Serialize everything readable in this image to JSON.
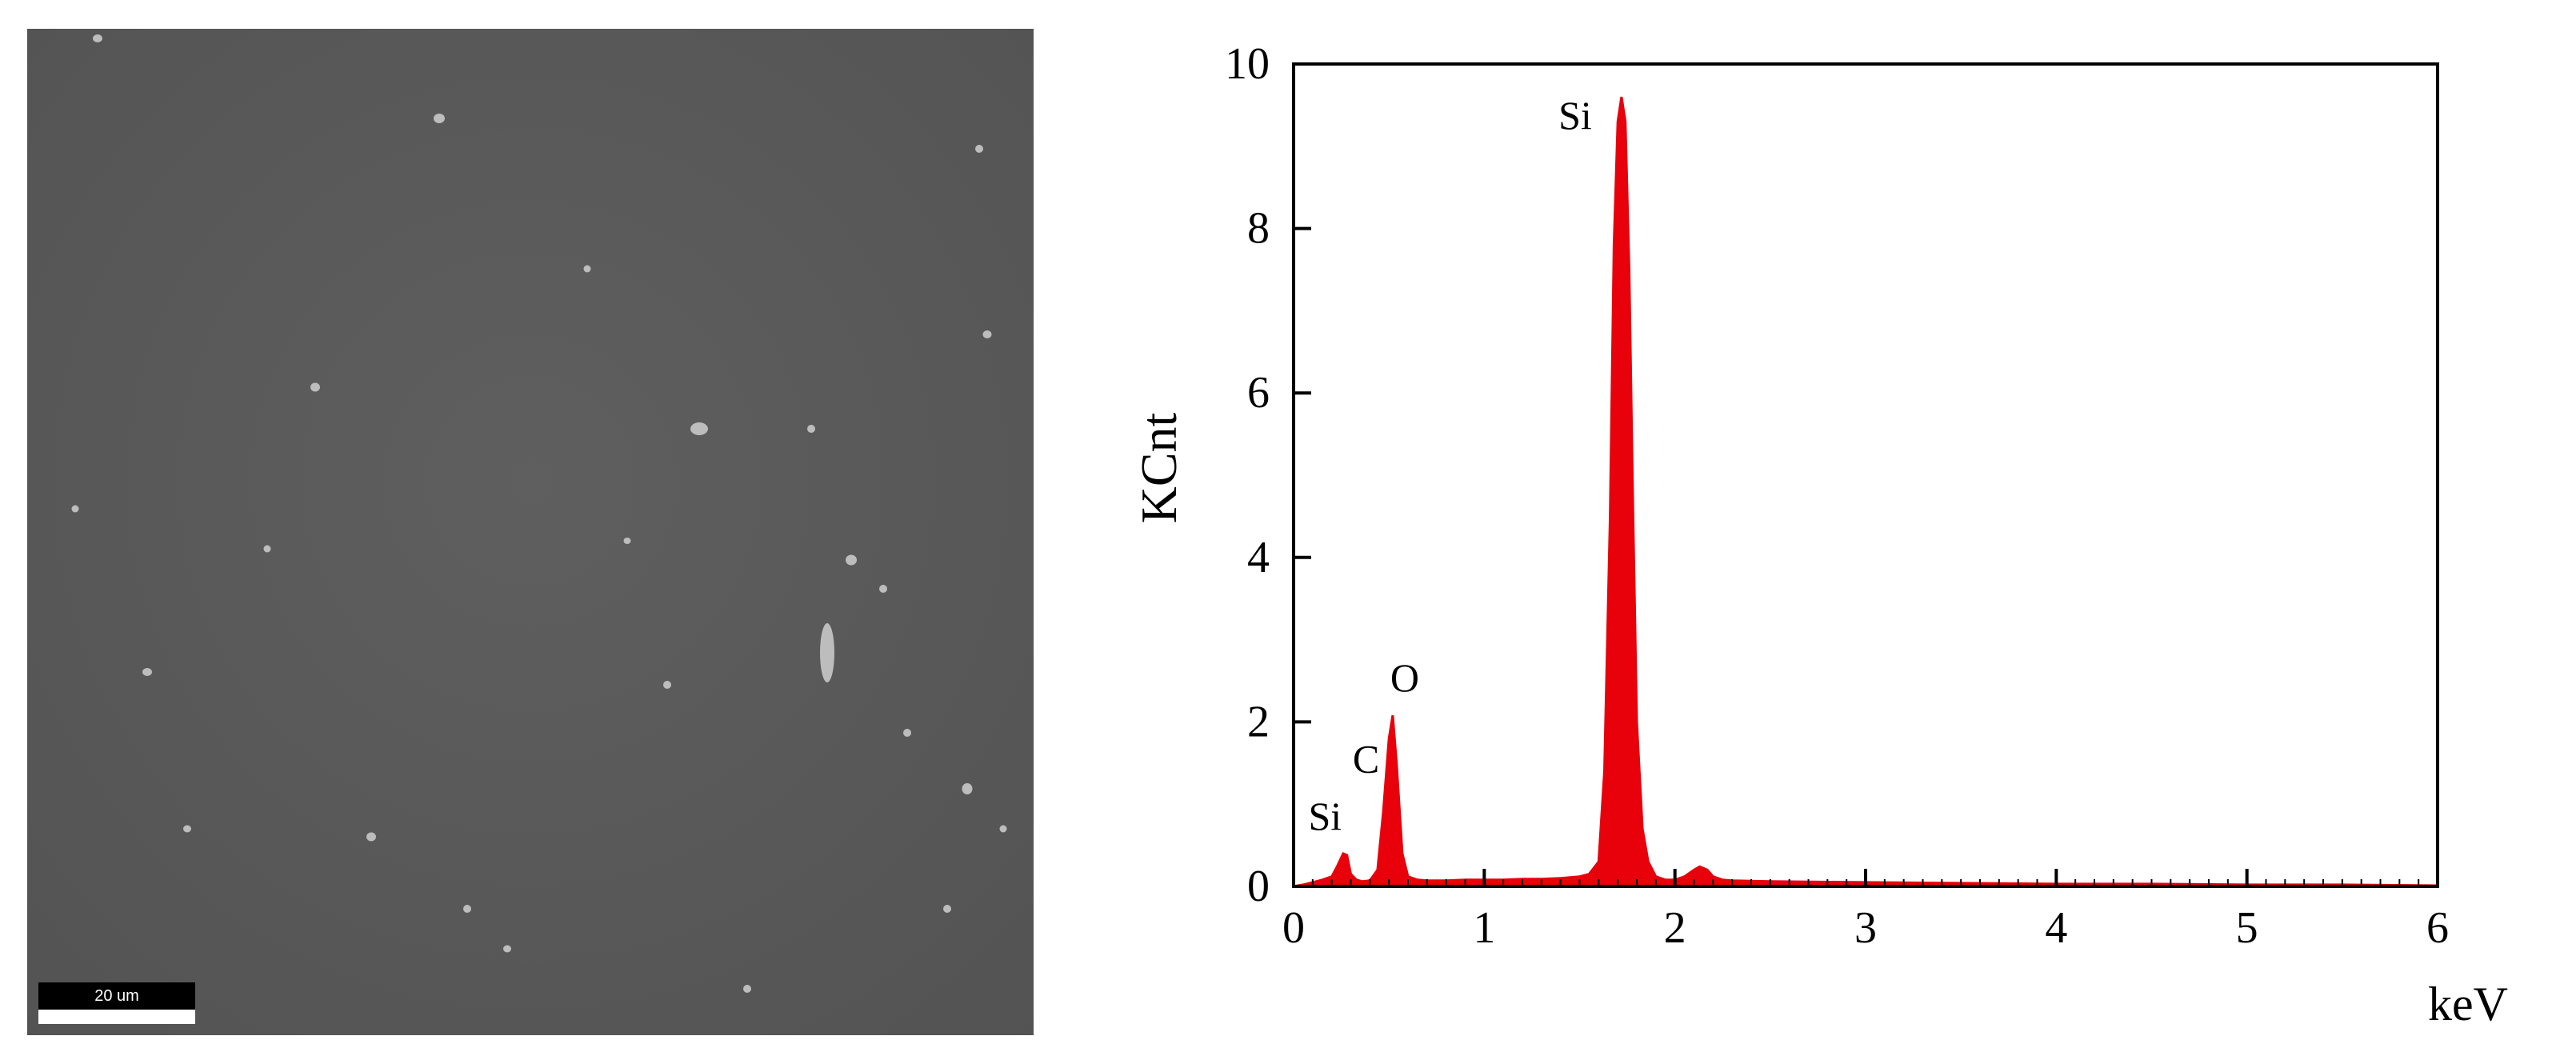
{
  "sem_image": {
    "scale_bar_label": "20 um"
  },
  "chart_data": {
    "type": "line",
    "title": "",
    "xlabel": "keV",
    "ylabel": "KCnt",
    "xlim": [
      0,
      6
    ],
    "ylim": [
      0,
      10
    ],
    "x_ticks": [
      0,
      1,
      2,
      3,
      4,
      5,
      6
    ],
    "y_ticks": [
      0,
      2,
      4,
      6,
      8,
      10
    ],
    "grid": false,
    "legend": "none",
    "series_color": "#e8000b",
    "series": [
      {
        "x": [
          0.0,
          0.05,
          0.1,
          0.15,
          0.2,
          0.23,
          0.26,
          0.28,
          0.3,
          0.33,
          0.36,
          0.4,
          0.44,
          0.47,
          0.5,
          0.52,
          0.54,
          0.57,
          0.6,
          0.65,
          0.7,
          0.8,
          0.9,
          1.0,
          1.1,
          1.2,
          1.3,
          1.4,
          1.5,
          1.55,
          1.6,
          1.63,
          1.66,
          1.68,
          1.7,
          1.72,
          1.74,
          1.76,
          1.78,
          1.8,
          1.83,
          1.86,
          1.9,
          1.95,
          2.0,
          2.05,
          2.1,
          2.13,
          2.17,
          2.2,
          2.25,
          2.3,
          2.5,
          3.0,
          3.5,
          4.0,
          4.5,
          5.0,
          5.5,
          6.0
        ],
        "y": [
          0.0,
          0.02,
          0.05,
          0.08,
          0.12,
          0.25,
          0.4,
          0.38,
          0.15,
          0.08,
          0.06,
          0.07,
          0.2,
          0.9,
          1.8,
          2.08,
          1.5,
          0.4,
          0.12,
          0.08,
          0.07,
          0.07,
          0.08,
          0.08,
          0.08,
          0.09,
          0.09,
          0.1,
          0.12,
          0.15,
          0.3,
          1.4,
          4.5,
          7.8,
          9.3,
          9.6,
          9.3,
          7.5,
          4.6,
          2.0,
          0.7,
          0.3,
          0.12,
          0.08,
          0.08,
          0.12,
          0.2,
          0.24,
          0.2,
          0.12,
          0.08,
          0.07,
          0.06,
          0.05,
          0.04,
          0.03,
          0.03,
          0.02,
          0.02,
          0.01
        ]
      }
    ],
    "annotations": [
      {
        "text": "Si",
        "x": 0.27,
        "y": 0.4
      },
      {
        "text": "C",
        "x": 0.38,
        "y": 0.9
      },
      {
        "text": "O",
        "x": 0.52,
        "y": 2.08
      },
      {
        "text": "Si",
        "x": 1.72,
        "y": 9.6
      }
    ]
  }
}
